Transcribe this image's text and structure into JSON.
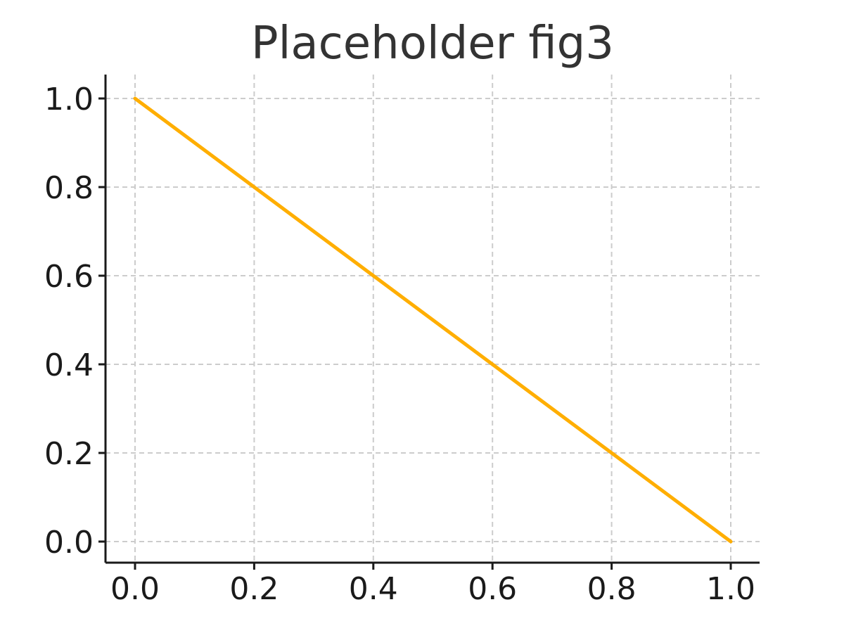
{
  "chart_data": {
    "type": "line",
    "title": "Placeholder fig3",
    "xlabel": "",
    "ylabel": "",
    "xlim": [
      0.0,
      1.0
    ],
    "ylim": [
      0.0,
      1.0
    ],
    "x_ticks": [
      "0.0",
      "0.2",
      "0.4",
      "0.6",
      "0.8",
      "1.0"
    ],
    "y_ticks": [
      "0.0",
      "0.2",
      "0.4",
      "0.6",
      "0.8",
      "1.0"
    ],
    "grid": true,
    "series": [
      {
        "color": "#FFAE00",
        "x": [
          0.0,
          1.0
        ],
        "y": [
          1.0,
          0.0
        ]
      }
    ]
  }
}
